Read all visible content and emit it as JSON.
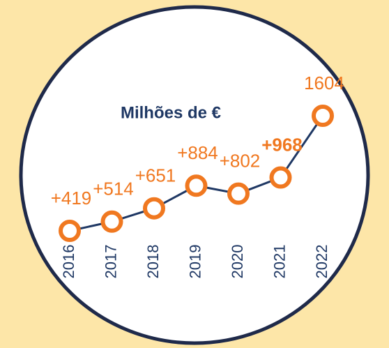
{
  "chart_data": {
    "type": "line",
    "title": "Milhões de €",
    "categories": [
      "2016",
      "2017",
      "2018",
      "2019",
      "2020",
      "2021",
      "2022"
    ],
    "series": [
      {
        "color": "#1f3864",
        "marker_color": "#f07820",
        "values": [
          419,
          514,
          651,
          884,
          802,
          968,
          1604
        ],
        "value_labels": [
          "+419",
          "+514",
          "+651",
          "+884",
          "+802",
          "+968",
          "1604"
        ],
        "bold_labels": [
          false,
          false,
          false,
          false,
          false,
          true,
          false
        ]
      }
    ]
  }
}
